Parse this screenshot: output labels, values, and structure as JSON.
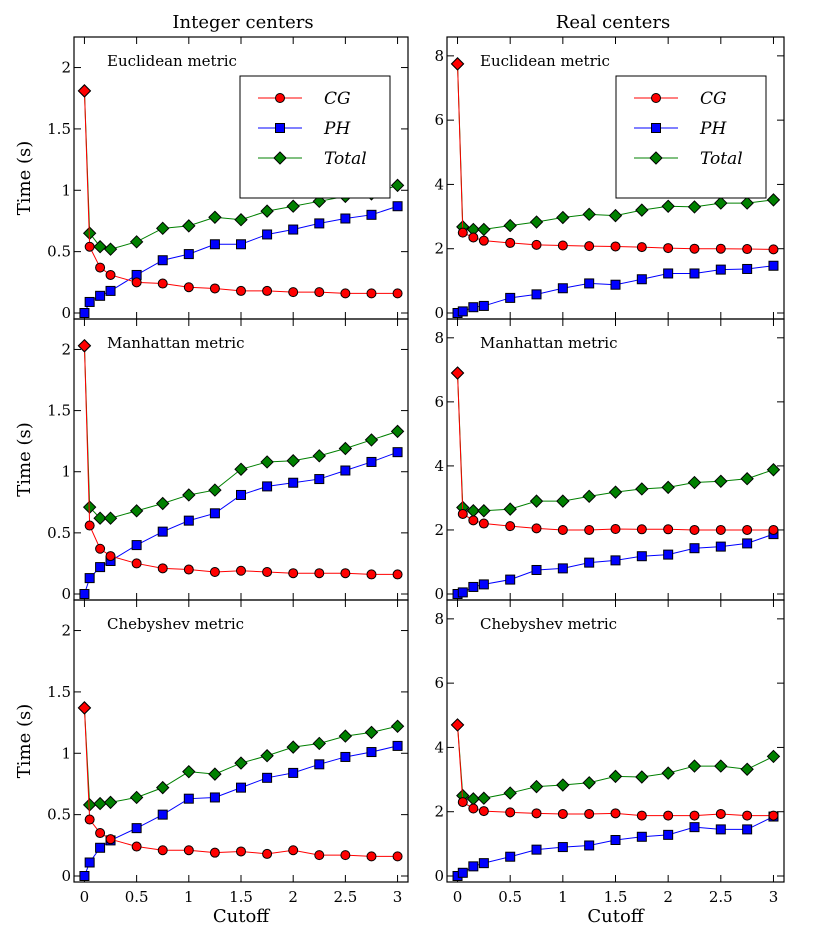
{
  "colors": {
    "CG": "#ff0000",
    "PH": "#0000ff",
    "Total": "#008000"
  },
  "columns": [
    "Integer centers",
    "Real centers"
  ],
  "chart_data": [
    {
      "type": "line",
      "col": 0,
      "row": 0,
      "panel_title": "Euclidean metric",
      "legend": true,
      "legend_position": "top-right",
      "ylabel": "Time (s)",
      "xlabel": "",
      "ylim": [
        0,
        2.2
      ],
      "yticks": [
        0,
        0.5,
        1,
        1.5,
        2
      ],
      "ytick_labels": [
        "0",
        "0.5",
        "1",
        "1.5",
        "2"
      ],
      "xlim": [
        -0.1,
        3.1
      ],
      "xticks": [
        0,
        0.5,
        1,
        1.5,
        2,
        2.5,
        3
      ],
      "xtick_labels": [],
      "x": [
        0,
        0.05,
        0.15,
        0.25,
        0.5,
        0.75,
        1,
        1.25,
        1.5,
        1.75,
        2,
        2.25,
        2.5,
        2.75,
        3
      ],
      "series": [
        {
          "name": "CG",
          "marker": "circle",
          "values": [
            1.81,
            0.54,
            0.37,
            0.31,
            0.25,
            0.24,
            0.21,
            0.2,
            0.18,
            0.18,
            0.17,
            0.17,
            0.16,
            0.16,
            0.16
          ]
        },
        {
          "name": "PH",
          "marker": "square",
          "values": [
            0.0,
            0.09,
            0.14,
            0.18,
            0.31,
            0.43,
            0.48,
            0.56,
            0.56,
            0.64,
            0.68,
            0.73,
            0.77,
            0.8,
            0.87
          ]
        },
        {
          "name": "Total",
          "marker": "diamond",
          "values": [
            1.81,
            0.65,
            0.54,
            0.52,
            0.58,
            0.69,
            0.71,
            0.78,
            0.76,
            0.83,
            0.87,
            0.91,
            0.95,
            0.97,
            1.04
          ]
        }
      ]
    },
    {
      "type": "line",
      "col": 1,
      "row": 0,
      "panel_title": "Euclidean metric",
      "legend": true,
      "legend_position": "top-right",
      "ylabel": "",
      "xlabel": "",
      "ylim": [
        0,
        8.4
      ],
      "yticks": [
        0,
        2,
        4,
        6,
        8
      ],
      "ytick_labels": [
        "0",
        "2",
        "4",
        "6",
        "8"
      ],
      "xlim": [
        -0.1,
        3.1
      ],
      "xticks": [
        0,
        0.5,
        1,
        1.5,
        2,
        2.5,
        3
      ],
      "xtick_labels": [],
      "x": [
        0,
        0.05,
        0.15,
        0.25,
        0.5,
        0.75,
        1,
        1.25,
        1.5,
        1.75,
        2,
        2.25,
        2.5,
        2.75,
        3
      ],
      "series": [
        {
          "name": "CG",
          "marker": "circle",
          "values": [
            7.75,
            2.5,
            2.35,
            2.25,
            2.18,
            2.12,
            2.1,
            2.08,
            2.07,
            2.05,
            2.02,
            2.0,
            2.0,
            1.99,
            1.98
          ]
        },
        {
          "name": "PH",
          "marker": "square",
          "values": [
            0.0,
            0.05,
            0.18,
            0.22,
            0.47,
            0.58,
            0.77,
            0.92,
            0.88,
            1.05,
            1.23,
            1.23,
            1.35,
            1.37,
            1.47
          ]
        },
        {
          "name": "Total",
          "marker": "diamond",
          "values": [
            7.75,
            2.68,
            2.6,
            2.6,
            2.72,
            2.83,
            2.97,
            3.07,
            3.03,
            3.2,
            3.32,
            3.3,
            3.42,
            3.42,
            3.52
          ]
        }
      ]
    },
    {
      "type": "line",
      "col": 0,
      "row": 1,
      "panel_title": "Manhattan metric",
      "legend": false,
      "ylabel": "Time (s)",
      "xlabel": "",
      "ylim": [
        0,
        2.2
      ],
      "yticks": [
        0,
        0.5,
        1,
        1.5,
        2
      ],
      "ytick_labels": [
        "0",
        "0.5",
        "1",
        "1.5",
        "2"
      ],
      "xlim": [
        -0.1,
        3.1
      ],
      "xticks": [
        0,
        0.5,
        1,
        1.5,
        2,
        2.5,
        3
      ],
      "xtick_labels": [],
      "x": [
        0,
        0.05,
        0.15,
        0.25,
        0.5,
        0.75,
        1,
        1.25,
        1.5,
        1.75,
        2,
        2.25,
        2.5,
        2.75,
        3
      ],
      "series": [
        {
          "name": "CG",
          "marker": "circle",
          "values": [
            2.03,
            0.56,
            0.37,
            0.31,
            0.25,
            0.21,
            0.2,
            0.18,
            0.19,
            0.18,
            0.17,
            0.17,
            0.17,
            0.16,
            0.16
          ]
        },
        {
          "name": "PH",
          "marker": "square",
          "values": [
            0.0,
            0.13,
            0.22,
            0.27,
            0.4,
            0.51,
            0.6,
            0.66,
            0.81,
            0.88,
            0.91,
            0.94,
            1.01,
            1.08,
            1.16
          ]
        },
        {
          "name": "Total",
          "marker": "diamond",
          "values": [
            2.03,
            0.71,
            0.62,
            0.62,
            0.68,
            0.74,
            0.81,
            0.85,
            1.02,
            1.08,
            1.09,
            1.13,
            1.19,
            1.26,
            1.33
          ]
        }
      ]
    },
    {
      "type": "line",
      "col": 1,
      "row": 1,
      "panel_title": "Manhattan metric",
      "legend": false,
      "ylabel": "",
      "xlabel": "",
      "ylim": [
        0,
        8.4
      ],
      "yticks": [
        0,
        2,
        4,
        6,
        8
      ],
      "ytick_labels": [
        "0",
        "2",
        "4",
        "6",
        "8"
      ],
      "xlim": [
        -0.1,
        3.1
      ],
      "xticks": [
        0,
        0.5,
        1,
        1.5,
        2,
        2.5,
        3
      ],
      "xtick_labels": [],
      "x": [
        0,
        0.05,
        0.15,
        0.25,
        0.5,
        0.75,
        1,
        1.25,
        1.5,
        1.75,
        2,
        2.25,
        2.5,
        2.75,
        3
      ],
      "series": [
        {
          "name": "CG",
          "marker": "circle",
          "values": [
            6.9,
            2.5,
            2.3,
            2.2,
            2.12,
            2.05,
            2.0,
            2.0,
            2.03,
            2.02,
            2.02,
            2.0,
            2.0,
            2.0,
            2.0
          ]
        },
        {
          "name": "PH",
          "marker": "square",
          "values": [
            0.0,
            0.05,
            0.22,
            0.3,
            0.45,
            0.75,
            0.8,
            0.98,
            1.05,
            1.18,
            1.23,
            1.43,
            1.48,
            1.58,
            1.87
          ]
        },
        {
          "name": "Total",
          "marker": "diamond",
          "values": [
            6.9,
            2.7,
            2.6,
            2.6,
            2.65,
            2.9,
            2.9,
            3.05,
            3.18,
            3.28,
            3.33,
            3.48,
            3.52,
            3.6,
            3.88
          ]
        }
      ]
    },
    {
      "type": "line",
      "col": 0,
      "row": 2,
      "panel_title": "Chebyshev metric",
      "legend": false,
      "ylabel": "Time (s)",
      "xlabel": "Cutoff",
      "ylim": [
        0,
        2.2
      ],
      "yticks": [
        0,
        0.5,
        1,
        1.5,
        2
      ],
      "ytick_labels": [
        "0",
        "0.5",
        "1",
        "1.5",
        "2"
      ],
      "xlim": [
        -0.1,
        3.1
      ],
      "xticks": [
        0,
        0.5,
        1,
        1.5,
        2,
        2.5,
        3
      ],
      "xtick_labels": [
        "0",
        "0.5",
        "1",
        "1.5",
        "2",
        "2.5",
        "3"
      ],
      "x": [
        0,
        0.05,
        0.15,
        0.25,
        0.5,
        0.75,
        1,
        1.25,
        1.5,
        1.75,
        2,
        2.25,
        2.5,
        2.75,
        3
      ],
      "series": [
        {
          "name": "CG",
          "marker": "circle",
          "values": [
            1.37,
            0.46,
            0.35,
            0.3,
            0.24,
            0.21,
            0.21,
            0.19,
            0.2,
            0.18,
            0.21,
            0.17,
            0.17,
            0.16,
            0.16
          ]
        },
        {
          "name": "PH",
          "marker": "square",
          "values": [
            0.0,
            0.11,
            0.23,
            0.29,
            0.39,
            0.5,
            0.63,
            0.64,
            0.72,
            0.8,
            0.84,
            0.91,
            0.97,
            1.01,
            1.06
          ]
        },
        {
          "name": "Total",
          "marker": "diamond",
          "values": [
            1.37,
            0.58,
            0.59,
            0.6,
            0.64,
            0.72,
            0.85,
            0.83,
            0.92,
            0.98,
            1.05,
            1.08,
            1.14,
            1.17,
            1.22
          ]
        }
      ]
    },
    {
      "type": "line",
      "col": 1,
      "row": 2,
      "panel_title": "Chebyshev metric",
      "legend": false,
      "ylabel": "",
      "xlabel": "Cutoff",
      "ylim": [
        0,
        8.4
      ],
      "yticks": [
        0,
        2,
        4,
        6,
        8
      ],
      "ytick_labels": [
        "0",
        "2",
        "4",
        "6",
        "8"
      ],
      "xlim": [
        -0.1,
        3.1
      ],
      "xticks": [
        0,
        0.5,
        1,
        1.5,
        2,
        2.5,
        3
      ],
      "xtick_labels": [
        "0",
        "0.5",
        "1",
        "1.5",
        "2",
        "2.5",
        "3"
      ],
      "x": [
        0,
        0.05,
        0.15,
        0.25,
        0.5,
        0.75,
        1,
        1.25,
        1.5,
        1.75,
        2,
        2.25,
        2.5,
        2.75,
        3
      ],
      "series": [
        {
          "name": "CG",
          "marker": "circle",
          "values": [
            4.7,
            2.3,
            2.1,
            2.02,
            1.98,
            1.95,
            1.93,
            1.93,
            1.95,
            1.88,
            1.88,
            1.88,
            1.93,
            1.88,
            1.88
          ]
        },
        {
          "name": "PH",
          "marker": "square",
          "values": [
            0.0,
            0.1,
            0.3,
            0.4,
            0.6,
            0.82,
            0.9,
            0.95,
            1.12,
            1.22,
            1.28,
            1.52,
            1.45,
            1.45,
            1.85
          ]
        },
        {
          "name": "Total",
          "marker": "diamond",
          "values": [
            4.7,
            2.5,
            2.4,
            2.42,
            2.58,
            2.78,
            2.83,
            2.9,
            3.1,
            3.08,
            3.2,
            3.42,
            3.42,
            3.32,
            3.72
          ]
        }
      ]
    }
  ]
}
